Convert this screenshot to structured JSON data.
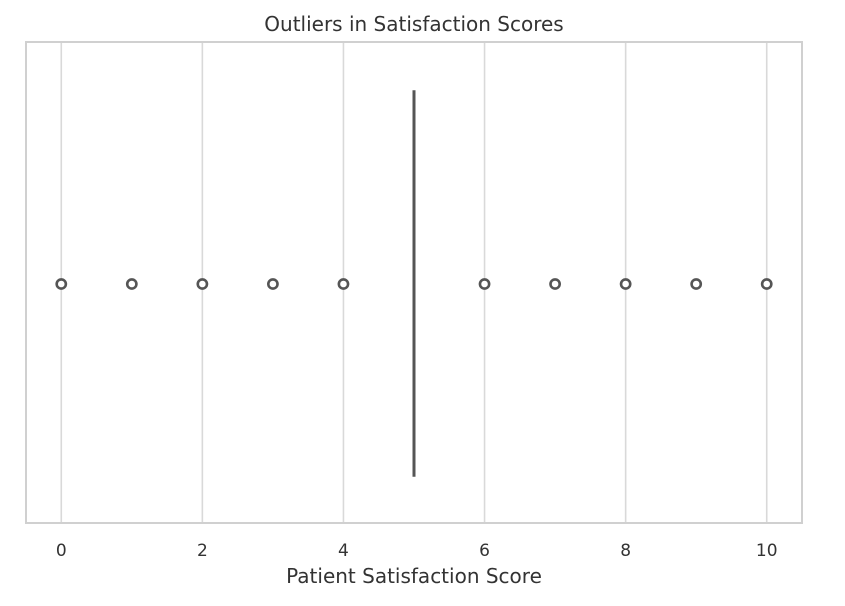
{
  "chart_data": {
    "type": "boxplot",
    "orientation": "horizontal",
    "title": "Outliers in Satisfaction Scores",
    "xlabel": "Patient Satisfaction Score",
    "ylabel": "",
    "xlim": [
      -0.5,
      10.5
    ],
    "xticks": [
      0,
      2,
      4,
      6,
      8,
      10
    ],
    "grid": "vertical",
    "box": {
      "q1": 5,
      "median": 5,
      "q3": 5,
      "whisker_low": 5,
      "whisker_high": 5
    },
    "outliers": [
      0,
      1,
      2,
      3,
      4,
      6,
      7,
      8,
      9,
      10
    ],
    "colors": {
      "frame": "#d0d0d0",
      "grid": "#d9d9d9",
      "box_line": "#555555",
      "outlier_edge": "#555555",
      "text": "#333333"
    }
  }
}
